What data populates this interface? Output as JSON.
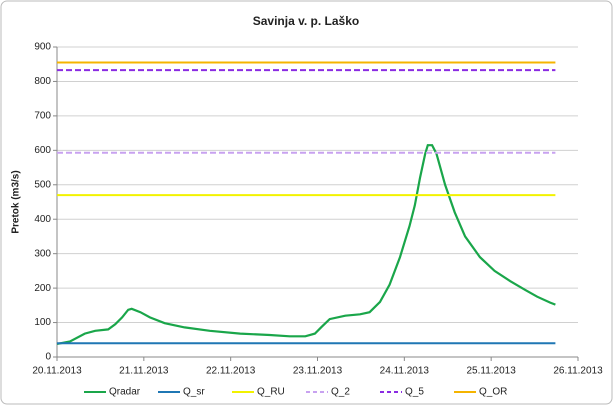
{
  "chart_data": {
    "type": "line",
    "title": "Savinja v. p. Laško",
    "y_label": "Pretok (m3/s)",
    "xlim": [
      20,
      26
    ],
    "xticks": [
      {
        "value": 20,
        "label": "20.11.2013"
      },
      {
        "value": 21,
        "label": "21.11.2013"
      },
      {
        "value": 22,
        "label": "22.11.2013"
      },
      {
        "value": 23,
        "label": "23.11.2013"
      },
      {
        "value": 24,
        "label": "24.11.2013"
      },
      {
        "value": 25,
        "label": "25.11.2013"
      },
      {
        "value": 26,
        "label": "26.11.2013"
      }
    ],
    "ylim": [
      0,
      900
    ],
    "yticks": [
      0,
      100,
      200,
      300,
      400,
      500,
      600,
      700,
      800,
      900
    ],
    "grid": true,
    "legend": "bottom",
    "series": [
      {
        "name": "Qradar",
        "color": "#1aa64a",
        "dash": false,
        "x": [
          20.0,
          20.15,
          20.32,
          20.44,
          20.59,
          20.67,
          20.75,
          20.82,
          20.86,
          20.96,
          21.07,
          21.24,
          21.47,
          21.76,
          22.11,
          22.45,
          22.68,
          22.86,
          22.97,
          23.05,
          23.14,
          23.32,
          23.49,
          23.6,
          23.72,
          23.83,
          23.95,
          24.06,
          24.12,
          24.18,
          24.24,
          24.27,
          24.32,
          24.37,
          24.47,
          24.58,
          24.7,
          24.87,
          25.04,
          25.22,
          25.39,
          25.53,
          25.68,
          25.74
        ],
        "values": [
          38,
          45,
          68,
          76,
          80,
          95,
          115,
          137,
          140,
          130,
          115,
          98,
          86,
          76,
          68,
          64,
          60,
          60,
          68,
          88,
          110,
          120,
          124,
          130,
          160,
          210,
          290,
          380,
          440,
          520,
          590,
          615,
          615,
          590,
          500,
          420,
          350,
          290,
          250,
          220,
          195,
          175,
          158,
          152
        ]
      },
      {
        "name": "Q_sr",
        "color": "#1f77b4",
        "dash": false,
        "x": [
          20,
          25.74
        ],
        "values": [
          40,
          40
        ]
      },
      {
        "name": "Q_RU",
        "color": "#f2f200",
        "dash": false,
        "x": [
          20,
          25.74
        ],
        "values": [
          470,
          470
        ]
      },
      {
        "name": "Q_2",
        "color": "#c8a2f0",
        "dash": true,
        "x": [
          20,
          25.74
        ],
        "values": [
          593,
          593
        ]
      },
      {
        "name": "Q_5",
        "color": "#8a2be2",
        "dash": true,
        "x": [
          20,
          25.74
        ],
        "values": [
          833,
          833
        ]
      },
      {
        "name": "Q_OR",
        "color": "#f5b400",
        "dash": false,
        "x": [
          20,
          25.74
        ],
        "values": [
          855,
          855
        ]
      }
    ]
  }
}
